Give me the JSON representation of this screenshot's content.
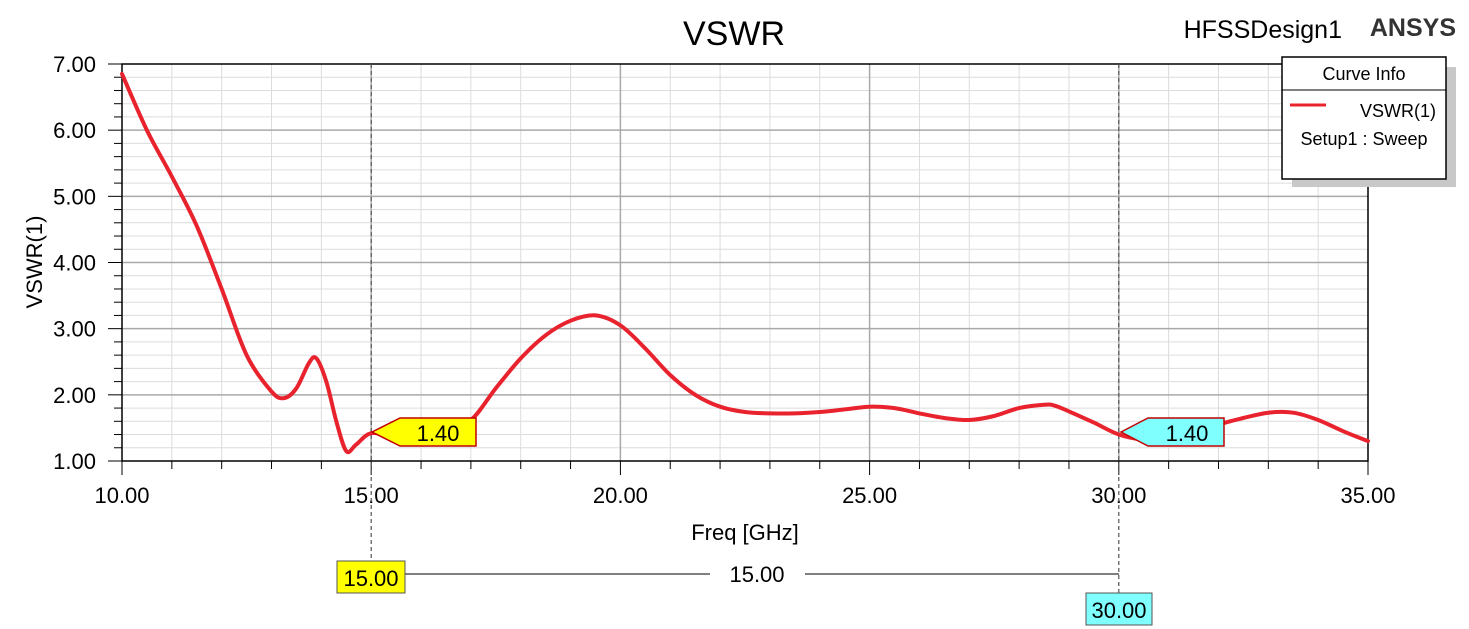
{
  "header": {
    "title": "VSWR",
    "design_name": "HFSSDesign1",
    "brand": "ANSYS"
  },
  "legend": {
    "title": "Curve Info",
    "series_name": "VSWR(1)",
    "setup": "Setup1 : Sweep",
    "placement": "top-right"
  },
  "colors": {
    "curve": "#e8232e",
    "marker1": "#ffff00",
    "marker2": "#80ffff",
    "marker_border": "#c00000",
    "grid_major": "#a9a9a9",
    "grid_minor": "#dcdcdc"
  },
  "markers": {
    "m1": {
      "freq": 15.0,
      "value": 1.4,
      "value_label": "1.40",
      "freq_label": "15.00"
    },
    "m2": {
      "freq": 30.0,
      "value": 1.4,
      "value_label": "1.40",
      "freq_label": "30.00"
    },
    "delta_label": "15.00"
  },
  "chart_data": {
    "type": "line",
    "title": "VSWR",
    "xlabel": "Freq [GHz]",
    "ylabel": "VSWR(1)",
    "xlim": [
      10,
      35
    ],
    "ylim": [
      1,
      7
    ],
    "grid": true,
    "x_ticks": [
      10,
      15,
      20,
      25,
      30,
      35
    ],
    "x_tick_labels": [
      "10.00",
      "15.00",
      "20.00",
      "25.00",
      "30.00",
      "35.00"
    ],
    "y_ticks": [
      1,
      2,
      3,
      4,
      5,
      6,
      7
    ],
    "y_tick_labels": [
      "1.00",
      "2.00",
      "3.00",
      "4.00",
      "5.00",
      "6.00",
      "7.00"
    ],
    "series": [
      {
        "name": "VSWR(1)",
        "x": [
          10.0,
          10.5,
          11.0,
          11.5,
          12.0,
          12.5,
          13.0,
          13.25,
          13.5,
          13.75,
          13.9,
          14.1,
          14.3,
          14.5,
          14.7,
          15.0,
          15.5,
          16.0,
          16.5,
          17.0,
          17.5,
          18.0,
          18.5,
          19.0,
          19.5,
          20.0,
          20.5,
          21.0,
          21.5,
          22.0,
          22.5,
          23.0,
          23.5,
          24.0,
          24.5,
          25.0,
          25.5,
          26.0,
          26.5,
          27.0,
          27.5,
          28.0,
          28.5,
          28.7,
          29.0,
          29.5,
          30.0,
          30.5,
          31.0,
          31.5,
          32.0,
          32.5,
          33.0,
          33.5,
          34.0,
          34.5,
          35.0
        ],
        "y": [
          6.85,
          6.0,
          5.3,
          4.55,
          3.6,
          2.6,
          2.05,
          1.95,
          2.1,
          2.48,
          2.55,
          2.2,
          1.6,
          1.15,
          1.25,
          1.42,
          1.38,
          1.4,
          1.5,
          1.62,
          2.1,
          2.55,
          2.9,
          3.12,
          3.2,
          3.05,
          2.7,
          2.3,
          2.0,
          1.82,
          1.74,
          1.72,
          1.72,
          1.74,
          1.78,
          1.82,
          1.8,
          1.72,
          1.65,
          1.62,
          1.68,
          1.8,
          1.85,
          1.84,
          1.75,
          1.58,
          1.4,
          1.32,
          1.32,
          1.4,
          1.55,
          1.65,
          1.73,
          1.73,
          1.62,
          1.45,
          1.3
        ]
      }
    ]
  }
}
